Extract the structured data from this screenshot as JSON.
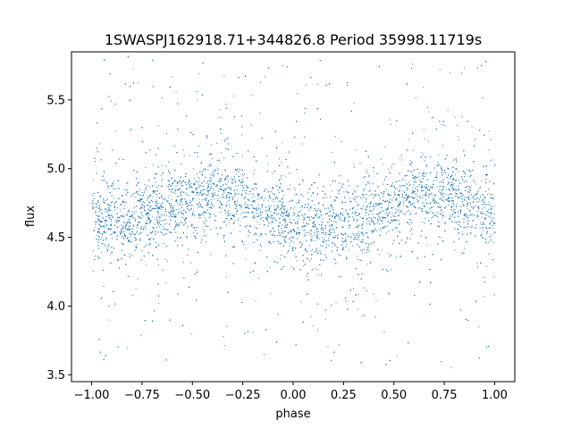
{
  "chart_data": {
    "type": "scatter",
    "title": "1SWASPJ162918.71+344826.8 Period 35998.11719s",
    "xlabel": "phase",
    "ylabel": "flux",
    "xlim": [
      -1.1,
      1.1
    ],
    "ylim": [
      3.45,
      5.85
    ],
    "xticks": [
      -1.0,
      -0.75,
      -0.5,
      -0.25,
      0.0,
      0.25,
      0.5,
      0.75,
      1.0
    ],
    "xtick_labels": [
      "−1.00",
      "−0.75",
      "−0.50",
      "−0.25",
      "0.00",
      "0.25",
      "0.50",
      "0.75",
      "1.00"
    ],
    "yticks": [
      3.5,
      4.0,
      4.5,
      5.0,
      5.5
    ],
    "ytick_labels": [
      "3.5",
      "4.0",
      "4.5",
      "5.0",
      "5.5"
    ],
    "grid": false,
    "legend": "none",
    "point_color": "#1f77b4",
    "series": [
      {
        "phase_range": [
          -1.0,
          1.0
        ],
        "flux_min": 3.55,
        "flux_max": 5.82,
        "trend": [
          {
            "phase": -1.0,
            "flux": 4.66
          },
          {
            "phase": -0.85,
            "flux": 4.6
          },
          {
            "phase": -0.65,
            "flux": 4.7
          },
          {
            "phase": -0.4,
            "flux": 4.84
          },
          {
            "phase": -0.2,
            "flux": 4.74
          },
          {
            "phase": 0.0,
            "flux": 4.6
          },
          {
            "phase": 0.15,
            "flux": 4.58
          },
          {
            "phase": 0.35,
            "flux": 4.66
          },
          {
            "phase": 0.6,
            "flux": 4.8
          },
          {
            "phase": 0.75,
            "flux": 4.82
          },
          {
            "phase": 0.9,
            "flux": 4.74
          },
          {
            "phase": 1.0,
            "flux": 4.66
          }
        ],
        "core_spread": 0.22
      }
    ]
  }
}
